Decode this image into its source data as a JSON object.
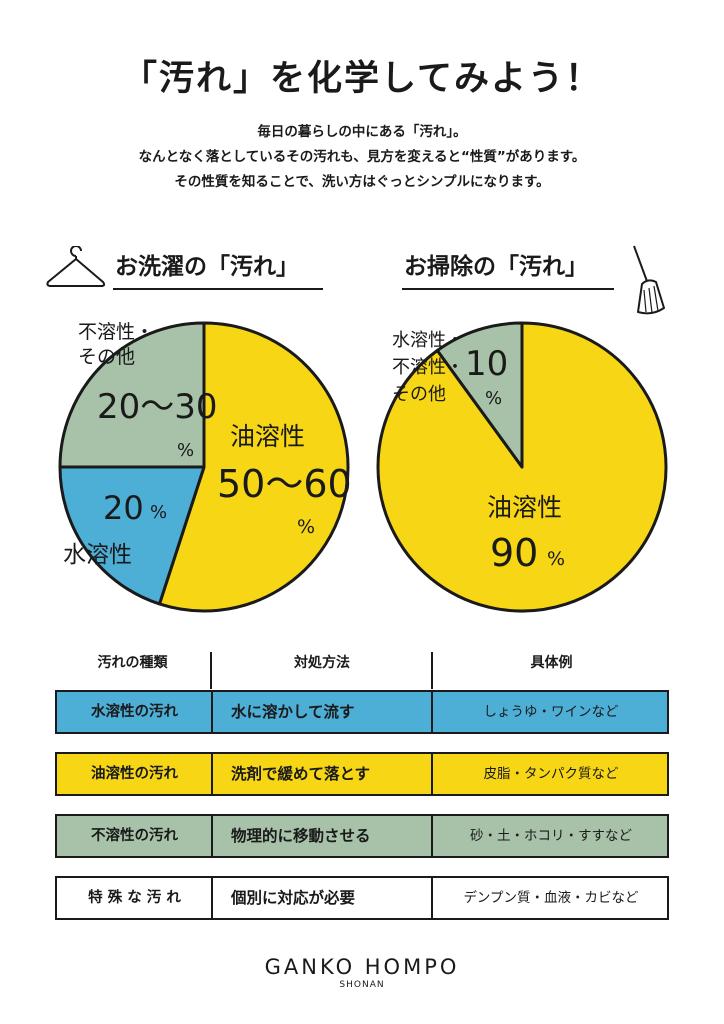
{
  "title": "「汚れ」を化学してみよう！",
  "intro": [
    "毎日の暮らしの中にある「汚れ」。",
    "なんとなく落としているその汚れも、見方を変えると“性質”があります。",
    "その性質を知ることで、洗い方はぐっとシンプルになります。"
  ],
  "colors": {
    "blue": "#4daed6",
    "yellow": "#f7d616",
    "green": "#a7c2a8",
    "black": "#1a1a1a",
    "white": "#ffffff"
  },
  "laundry": {
    "heading": "お洗濯の「汚れ」",
    "icon": "hanger-icon",
    "label_oil": "油溶性",
    "value_oil": "50～60",
    "label_water": "水溶性",
    "value_water": "20",
    "label_other_1": "不溶性・",
    "label_other_2": "その他",
    "value_other": "20～30",
    "unit": "%"
  },
  "cleaning": {
    "heading": "お掃除の「汚れ」",
    "icon": "broom-icon",
    "label_oil": "油溶性",
    "value_oil": "90",
    "label_other_1": "水溶性・",
    "label_other_2": "不溶性・",
    "label_other_3": "その他",
    "value_other": "10",
    "unit": "%"
  },
  "chart_data": [
    {
      "type": "pie",
      "title": "お洗濯の「汚れ」",
      "categories": [
        "油溶性",
        "水溶性",
        "不溶性・その他"
      ],
      "values": [
        55,
        20,
        25
      ],
      "value_labels": [
        "50～60%",
        "20%",
        "20～30%"
      ],
      "colors": [
        "#f7d616",
        "#4daed6",
        "#a7c2a8"
      ]
    },
    {
      "type": "pie",
      "title": "お掃除の「汚れ」",
      "categories": [
        "油溶性",
        "水溶性・不溶性・その他"
      ],
      "values": [
        90,
        10
      ],
      "value_labels": [
        "90%",
        "10%"
      ],
      "colors": [
        "#f7d616",
        "#a7c2a8"
      ]
    }
  ],
  "table": {
    "headers": [
      "汚れの種類",
      "対処方法",
      "具体例"
    ],
    "rows": [
      {
        "type": "水溶性の汚れ",
        "method": "水に溶かして流す",
        "example": "しょうゆ・ワインなど",
        "color": "#4daed6"
      },
      {
        "type": "油溶性の汚れ",
        "method": "洗剤で緩めて落とす",
        "example": "皮脂・タンパク質など",
        "color": "#f7d616"
      },
      {
        "type": "不溶性の汚れ",
        "method": "物理的に移動させる",
        "example": "砂・土・ホコリ・すすなど",
        "color": "#a7c2a8"
      },
      {
        "type": "特 殊 な 汚 れ",
        "method": "個別に対応が必要",
        "example": "デンプン質・血液・カビなど",
        "color": "#ffffff"
      }
    ]
  },
  "logo": {
    "main": "GANKO HOMPO",
    "sub": "SHONAN"
  }
}
